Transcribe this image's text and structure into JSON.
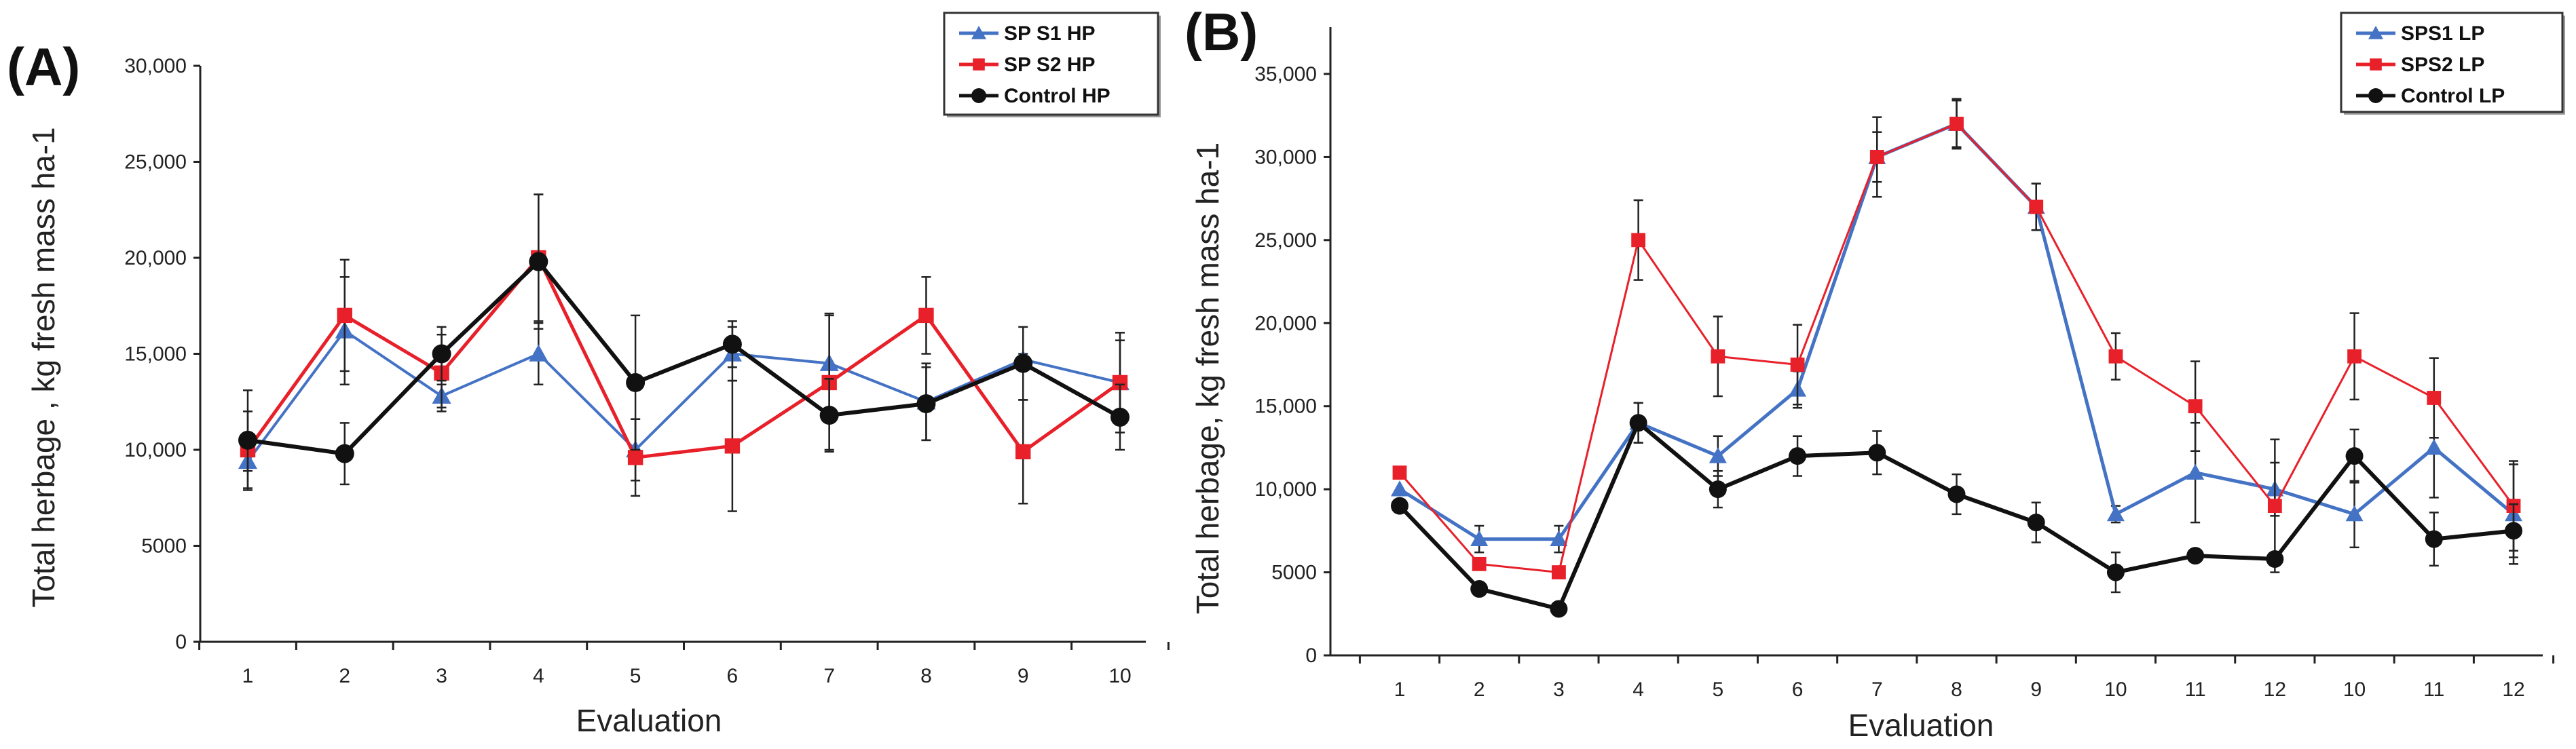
{
  "chart_data": [
    {
      "type": "line",
      "panel_label": "(A)",
      "title": "",
      "xlabel": "Evaluation",
      "ylabel": "Total herbage ,  kg fresh mass  ha-1",
      "ylim": [
        0,
        30000
      ],
      "yticks": [
        0,
        5000,
        10000,
        15000,
        20000,
        25000,
        30000
      ],
      "ytick_labels": [
        "0",
        "5000",
        "10,000",
        "15,000",
        "20,000",
        "25,000",
        "30,000"
      ],
      "categories": [
        "1",
        "2",
        "3",
        "4",
        "5",
        "6",
        "7",
        "8",
        "9",
        "10"
      ],
      "legend_position": "top-right",
      "grid": false,
      "series": [
        {
          "name": "SP S1 HP",
          "color": "#4472c4",
          "marker": "triangle",
          "values": [
            9400,
            16200,
            12800,
            15000,
            10000,
            15000,
            14500,
            12500,
            14700,
            13500
          ],
          "errors": [
            500,
            2800,
            600,
            1600,
            1600,
            1400,
            2600,
            2000,
            300,
            2600
          ]
        },
        {
          "name": "SP S2 HP",
          "color": "#e8202a",
          "marker": "square",
          "values": [
            10000,
            17000,
            14000,
            20000,
            9600,
            10200,
            13500,
            17000,
            9900,
            13500
          ],
          "errors": [
            2000,
            2900,
            2000,
            3300,
            2000,
            3400,
            3500,
            2000,
            2700,
            2200
          ]
        },
        {
          "name": "Control HP",
          "color": "#111111",
          "marker": "circle",
          "values": [
            10500,
            9800,
            15000,
            19800,
            13500,
            15500,
            11800,
            12400,
            14500,
            11700
          ],
          "errors": [
            2600,
            1600,
            1400,
            3500,
            3500,
            1200,
            1900,
            1900,
            1900,
            1700
          ]
        }
      ]
    },
    {
      "type": "line",
      "panel_label": "(B)",
      "title": "",
      "xlabel": "Evaluation",
      "ylabel": "Total herbage,  kg fresh mass  ha-1",
      "ylim": [
        0,
        37000
      ],
      "yticks": [
        0,
        5000,
        10000,
        15000,
        20000,
        25000,
        30000,
        35000
      ],
      "ytick_labels": [
        "0",
        "5000",
        "10,000",
        "15,000",
        "20,000",
        "25,000",
        "30,000",
        "35,000"
      ],
      "categories": [
        "1",
        "2",
        "3",
        "4",
        "5",
        "6",
        "7",
        "8",
        "9",
        "10",
        "11",
        "12",
        "10",
        "11",
        "12"
      ],
      "legend_position": "top-right",
      "grid": false,
      "series": [
        {
          "name": "SPS1 LP",
          "color": "#4472c4",
          "marker": "triangle",
          "values": [
            10000,
            7000,
            7000,
            14000,
            12000,
            16000,
            30000,
            32000,
            27000,
            8500,
            11000,
            10000,
            8500,
            12500,
            8500
          ],
          "errors": [
            0,
            800,
            800,
            1200,
            1200,
            1100,
            1500,
            1400,
            1400,
            500,
            3000,
            1600,
            2000,
            3000,
            3000
          ]
        },
        {
          "name": "SPS2 LP",
          "color": "#e8202a",
          "marker": "square",
          "values": [
            11000,
            5500,
            5000,
            25000,
            18000,
            17500,
            30000,
            32000,
            27000,
            18000,
            15000,
            9000,
            18000,
            15500,
            9000
          ],
          "errors": [
            0,
            0,
            0,
            2400,
            2400,
            2400,
            2400,
            1500,
            1400,
            1400,
            2700,
            4000,
            2600,
            2400,
            2700
          ]
        },
        {
          "name": "Control LP",
          "color": "#111111",
          "marker": "circle",
          "values": [
            9000,
            4000,
            2800,
            14000,
            10000,
            12000,
            12200,
            9700,
            8000,
            5000,
            6000,
            5800,
            12000,
            7000,
            7500
          ],
          "errors": [
            0,
            0,
            0,
            1200,
            1100,
            1200,
            1300,
            1200,
            1200,
            1200,
            0,
            0,
            1600,
            1600,
            1600
          ]
        }
      ]
    }
  ]
}
